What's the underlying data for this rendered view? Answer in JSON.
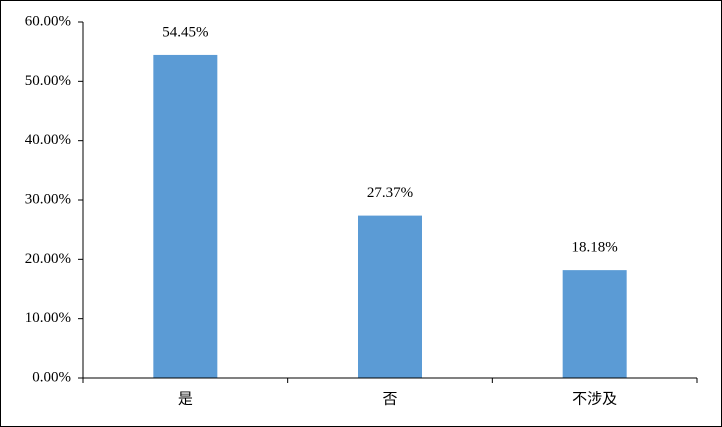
{
  "chart_data": {
    "type": "bar",
    "categories": [
      "是",
      "否",
      "不涉及"
    ],
    "values": [
      54.45,
      27.37,
      18.18
    ],
    "value_labels": [
      "54.45%",
      "27.37%",
      "18.18%"
    ],
    "color": "#5b9bd5",
    "ylim": [
      0,
      60
    ],
    "yticks": [
      {
        "value": 0,
        "label": "0.00%"
      },
      {
        "value": 10,
        "label": "10.00%"
      },
      {
        "value": 20,
        "label": "20.00%"
      },
      {
        "value": 30,
        "label": "30.00%"
      },
      {
        "value": 40,
        "label": "40.00%"
      },
      {
        "value": 50,
        "label": "50.00%"
      },
      {
        "value": 60,
        "label": "60.00%"
      }
    ],
    "grid": false
  }
}
